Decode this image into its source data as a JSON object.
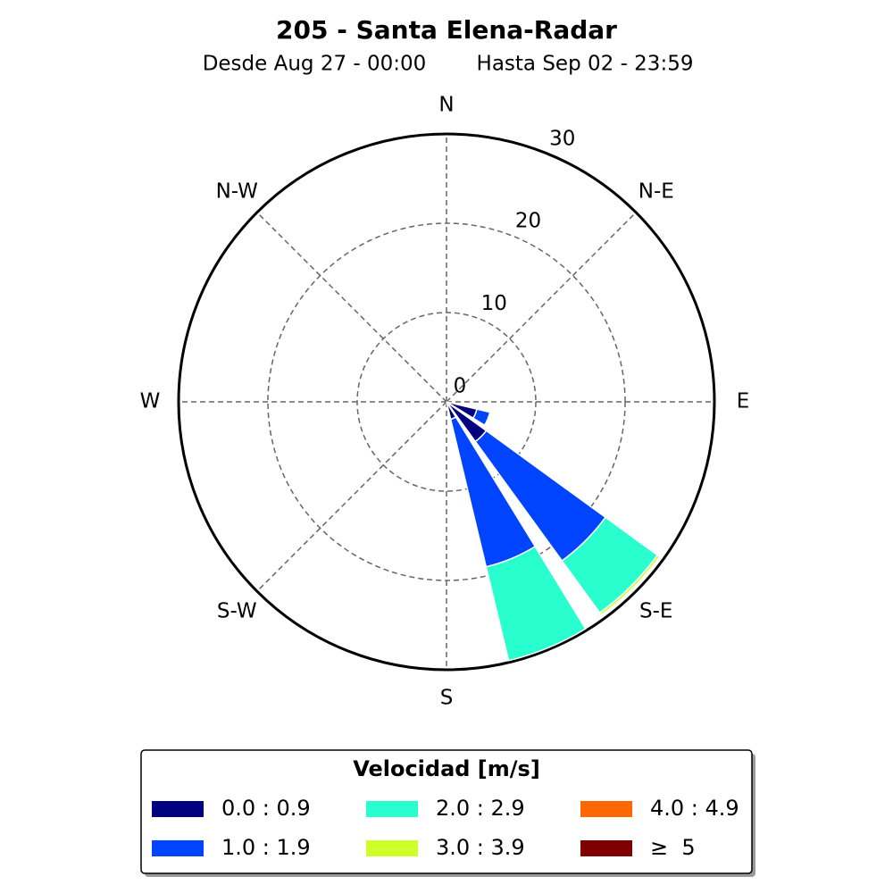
{
  "chart_data": {
    "type": "windrose",
    "title": "205 - Santa Elena-Radar",
    "subtitle": [
      "Desde Aug 27 - 00:00",
      "Hasta Sep 02 - 23:59"
    ],
    "categories": [
      "N",
      null,
      "N-E",
      null,
      "E",
      null,
      "S-E",
      null,
      "S",
      null,
      "S-W",
      null,
      "W",
      null,
      "N-W",
      null
    ],
    "ylim": [
      0,
      30
    ],
    "yticks": [
      0,
      10,
      20,
      30
    ],
    "grid": true,
    "legend_title": "Velocidad [m/s]",
    "series": [
      {
        "name": "0.0 : 0.9",
        "color": "#000080",
        "values": [
          0,
          0,
          0,
          0,
          0,
          3.5,
          5.5,
          2,
          0,
          0,
          0,
          0,
          0,
          0,
          0,
          0
        ]
      },
      {
        "name": "1.0 : 1.9",
        "color": "#0044ff",
        "values": [
          0,
          0,
          0,
          0,
          0,
          1.5,
          16.5,
          17,
          0,
          0,
          0,
          0,
          0,
          0,
          0,
          0
        ]
      },
      {
        "name": "2.0 : 2.9",
        "color": "#29ffce",
        "values": [
          0,
          0,
          0,
          0,
          0,
          0,
          7.2,
          10.8,
          0,
          0,
          0,
          0,
          0,
          0,
          0,
          0
        ]
      },
      {
        "name": "3.0 : 3.9",
        "color": "#ceff29",
        "values": [
          0,
          0,
          0,
          0,
          0,
          0,
          0.3,
          0,
          0,
          0,
          0,
          0,
          0,
          0,
          0,
          0
        ]
      },
      {
        "name": "4.0 : 4.9",
        "color": "#ff6800",
        "values": [
          0,
          0,
          0,
          0,
          0,
          0,
          0,
          0,
          0,
          0,
          0,
          0,
          0,
          0,
          0,
          0
        ]
      },
      {
        "name": "≥  5",
        "color": "#800000",
        "values": [
          0,
          0,
          0,
          0,
          0,
          0,
          0,
          0,
          0,
          0,
          0,
          0,
          0,
          0,
          0,
          0
        ]
      }
    ]
  }
}
